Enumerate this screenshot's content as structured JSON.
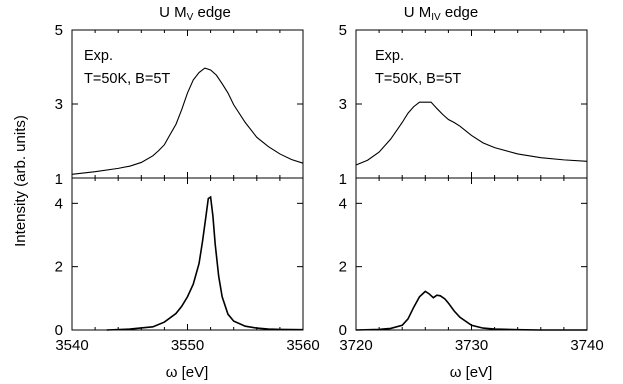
{
  "figure": {
    "ylabel": "Intensity (arb. units)",
    "columns": [
      {
        "title_main": "U M",
        "title_sub": "V",
        "title_tail": " edge",
        "xlabel": "ω [eV]",
        "xlim": [
          3540,
          3560
        ],
        "xticks": [
          3540,
          3550,
          3560
        ],
        "top": {
          "annotation_line1": "Exp.",
          "annotation_line2": "T=50K, B=5T",
          "ylim": [
            1,
            5
          ],
          "yticks": [
            1,
            3,
            5
          ]
        },
        "bottom": {
          "ylim": [
            0,
            4.8
          ],
          "yticks": [
            0,
            2,
            4
          ]
        }
      },
      {
        "title_main": "U M",
        "title_sub": "IV",
        "title_tail": " edge",
        "xlabel": "ω [eV]",
        "xlim": [
          3720,
          3740
        ],
        "xticks": [
          3720,
          3730,
          3740
        ],
        "top": {
          "annotation_line1": "Exp.",
          "annotation_line2": "T=50K, B=5T",
          "ylim": [
            1,
            5
          ],
          "yticks": [
            1,
            3,
            5
          ]
        },
        "bottom": {
          "ylim": [
            0,
            4.8
          ],
          "yticks": [
            0,
            2,
            4
          ]
        }
      }
    ]
  },
  "chart_data": [
    {
      "type": "line",
      "panel": "top-left",
      "title": "U MV edge",
      "xlim": [
        3540,
        3560
      ],
      "ylim": [
        1,
        5
      ],
      "series": [
        {
          "x": [
            3540,
            3542,
            3544,
            3545,
            3546,
            3547,
            3547.5,
            3548,
            3548.5,
            3549,
            3549.5,
            3550,
            3550.5,
            3551,
            3551.5,
            3552,
            3552.5,
            3553,
            3553.5,
            3554,
            3555,
            3556,
            3557,
            3558,
            3559,
            3560
          ],
          "y": [
            1.1,
            1.17,
            1.26,
            1.32,
            1.42,
            1.6,
            1.74,
            1.9,
            2.18,
            2.45,
            2.85,
            3.3,
            3.65,
            3.85,
            3.97,
            3.92,
            3.78,
            3.55,
            3.3,
            2.98,
            2.5,
            2.1,
            1.85,
            1.65,
            1.5,
            1.4
          ]
        }
      ]
    },
    {
      "type": "line",
      "panel": "bottom-left",
      "xlim": [
        3540,
        3560
      ],
      "ylim": [
        0,
        4.8
      ],
      "series": [
        {
          "x": [
            3543,
            3545,
            3547,
            3548,
            3549,
            3549.5,
            3550,
            3550.5,
            3551,
            3551.3,
            3551.6,
            3551.8,
            3552,
            3552.2,
            3552.4,
            3552.7,
            3553,
            3553.5,
            3554,
            3555,
            3556,
            3557,
            3558,
            3560
          ],
          "y": [
            0,
            0.03,
            0.1,
            0.25,
            0.52,
            0.75,
            1.05,
            1.45,
            2.1,
            2.8,
            3.6,
            4.15,
            4.2,
            3.6,
            2.7,
            1.7,
            1.05,
            0.5,
            0.28,
            0.12,
            0.06,
            0.03,
            0.02,
            0.01
          ]
        }
      ]
    },
    {
      "type": "line",
      "panel": "top-right",
      "title": "U MIV edge",
      "xlim": [
        3720,
        3740
      ],
      "ylim": [
        1,
        5
      ],
      "series": [
        {
          "x": [
            3720,
            3721,
            3722,
            3723,
            3724,
            3724.5,
            3725,
            3725.5,
            3726,
            3726.5,
            3727,
            3727.5,
            3728,
            3728.5,
            3729,
            3730,
            3731,
            3732,
            3734,
            3736,
            3738,
            3740
          ],
          "y": [
            1.35,
            1.48,
            1.7,
            2.05,
            2.5,
            2.75,
            2.93,
            3.05,
            3.05,
            3.05,
            2.88,
            2.72,
            2.58,
            2.5,
            2.4,
            2.15,
            1.95,
            1.82,
            1.65,
            1.55,
            1.49,
            1.45
          ]
        }
      ]
    },
    {
      "type": "line",
      "panel": "bottom-right",
      "xlim": [
        3720,
        3740
      ],
      "ylim": [
        0,
        4.8
      ],
      "series": [
        {
          "x": [
            3720,
            3722,
            3723,
            3724,
            3724.5,
            3725,
            3725.5,
            3726,
            3726.3,
            3726.7,
            3727,
            3727.3,
            3727.7,
            3728,
            3728.5,
            3729,
            3730,
            3731,
            3732,
            3734,
            3736,
            3740
          ],
          "y": [
            0,
            0.02,
            0.05,
            0.15,
            0.35,
            0.72,
            1.05,
            1.22,
            1.15,
            1.02,
            1.1,
            1.08,
            0.98,
            0.85,
            0.6,
            0.4,
            0.15,
            0.06,
            0.03,
            0.01,
            0,
            0
          ]
        }
      ]
    }
  ]
}
